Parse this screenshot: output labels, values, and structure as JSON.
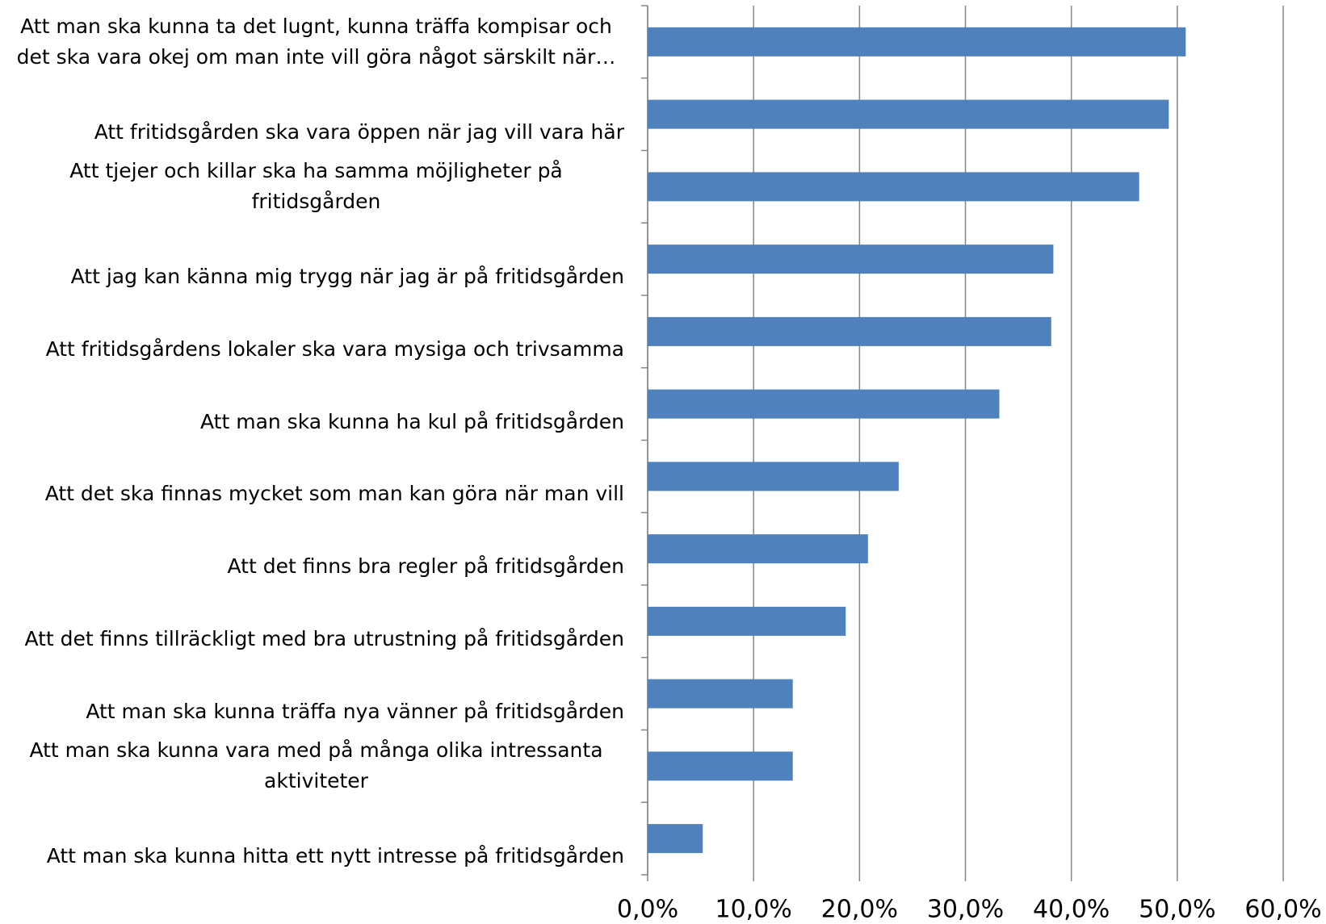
{
  "chart_data": {
    "type": "barh",
    "categories": [
      "Att man ska kunna ta det lugnt, kunna träffa kompisar och det ska vara okej om man inte vill göra något särskilt när…",
      "Att fritidsgården ska vara öppen när jag vill vara här",
      "Att tjejer och killar ska ha samma möjligheter på fritidsgården",
      "Att jag kan känna mig trygg när jag är på fritidsgården",
      "Att fritidsgårdens lokaler ska vara mysiga och trivsamma",
      "Att man ska kunna ha kul på fritidsgården",
      "Att det ska finnas mycket som man kan göra när man vill",
      "Att det finns bra regler på fritidsgården",
      "Att det finns tillräckligt med bra utrustning på fritidsgården",
      "Att man ska kunna träffa nya vänner på fritidsgården",
      "Att man ska kunna vara med på många olika intressanta aktiviteter",
      "Att man ska kunna hitta ett nytt intresse på fritidsgården"
    ],
    "values": [
      50.8,
      49.2,
      46.4,
      38.3,
      38.1,
      33.2,
      23.7,
      20.8,
      18.7,
      13.7,
      13.7,
      5.2
    ],
    "color": "#4f81bd",
    "xlim": [
      0,
      60
    ],
    "xticks": [
      {
        "value": 0,
        "label": "0,0%"
      },
      {
        "value": 10,
        "label": "10,0%"
      },
      {
        "value": 20,
        "label": "20,0%"
      },
      {
        "value": 30,
        "label": "30,0%"
      },
      {
        "value": 40,
        "label": "40,0%"
      },
      {
        "value": 50,
        "label": "50,0%"
      },
      {
        "value": 60,
        "label": "60,0%"
      }
    ],
    "grid": true
  }
}
